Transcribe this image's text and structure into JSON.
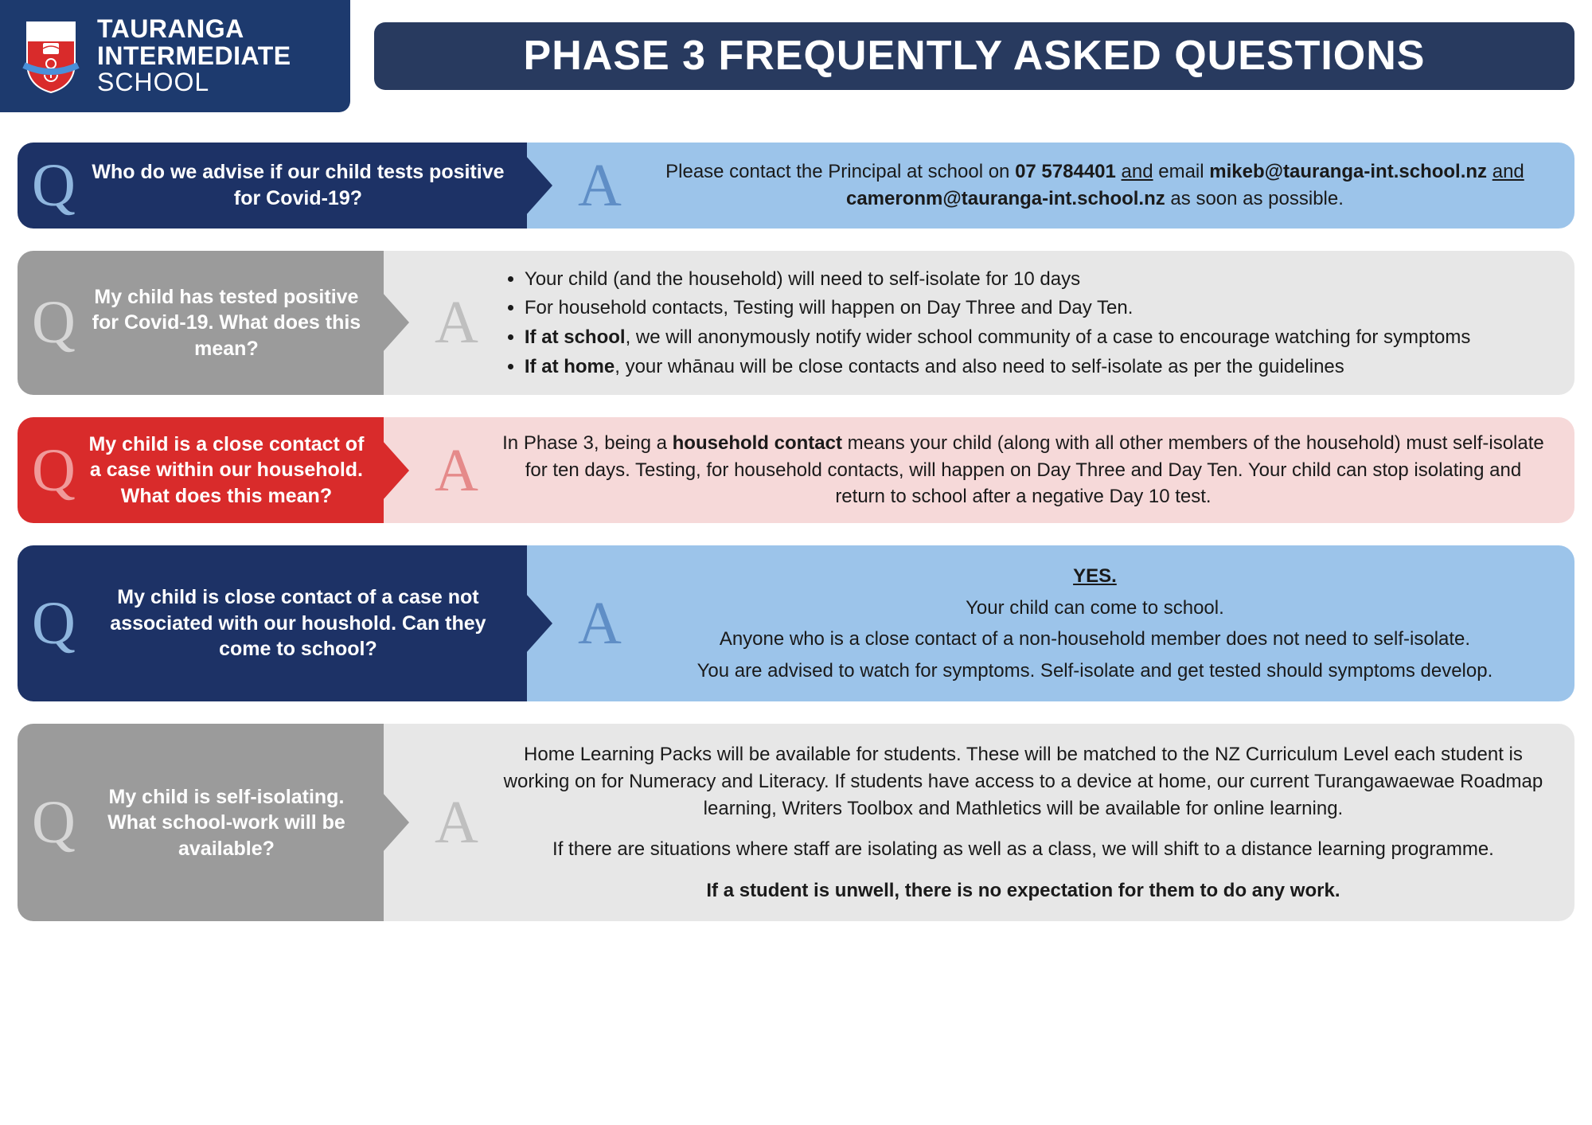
{
  "school": {
    "line1": "TAURANGA",
    "line2": "INTERMEDIATE",
    "line3": "SCHOOL"
  },
  "title": "PHASE 3 FREQUENTLY ASKED QUESTIONS",
  "colors": {
    "header_logo_bg": "#1d3a6e",
    "title_bar_bg": "#283a5f",
    "q_navy": "#1d3266",
    "q_navy_letter": "#8fb6de",
    "a_lightblue": "#9cc4ea",
    "a_lightblue_letter": "#5f8ec6",
    "q_grey": "#9b9b9b",
    "q_grey_letter": "#d7d7d7",
    "a_lightgrey": "#e7e7e7",
    "a_lightgrey_letter": "#bfbfbf",
    "q_red": "#d92b2b",
    "q_red_letter": "#f09a9a",
    "a_pink": "#f6d9d9",
    "a_pink_letter": "#e58a8a",
    "text": "#1a1a1a"
  },
  "faq": [
    {
      "style": "navy",
      "width": "wide",
      "question": "Who do we advise if our child tests positive for Covid-19?",
      "answer_html": "Please contact the Principal at school on <span class='bold'>07 5784401</span> <span class='ul'>and</span> email <span class='bold'>mikeb@tauranga-int.school.nz</span> <span class='ul'>and</span> <span class='bold'>cameronm@tauranga-int.school.nz</span> as soon as possible.",
      "align": "center"
    },
    {
      "style": "grey",
      "width": "narrow",
      "question": "My child has tested positive for Covid-19. What does this mean?",
      "answer_html": "<ul><li>Your child (and the household) will need to self-isolate for 10 days</li><li>For household contacts, Testing will happen on Day Three and Day Ten.</li><li><span class='bold'>If at school</span>, we will anonymously notify wider school community of a case to encourage watching for symptoms</li><li><span class='bold'>If at home</span>, your whānau will be close contacts and also need to self-isolate as per the guidelines</li></ul>",
      "align": "left"
    },
    {
      "style": "red",
      "width": "mid",
      "question": "My child is a close contact of a case within our household. What does this mean?",
      "answer_html": "In Phase 3, being a <span class='bold'>household contact</span> means your child (along with all other members of the household) must self-isolate for ten days. Testing, for household contacts, will happen on Day Three and Day Ten. Your child can stop isolating and return to school after a negative Day 10 test.",
      "align": "center"
    },
    {
      "style": "navy",
      "width": "wide",
      "question": "My child is close contact of a case not associated with our houshold. Can they come to school?",
      "answer_html": "<p><span class='bold ul'>YES.</span></p><p>Your child can come to school.</p><p>Anyone who is a close contact of a non-household member does not need to self-isolate.</p><p>You are advised to watch for symptoms. Self-isolate and get tested should symptoms develop.</p>",
      "align": "center"
    },
    {
      "style": "grey",
      "width": "narrow",
      "question": "My child is self-isolating. What school-work will be available?",
      "answer_html": "<p>Home Learning Packs will be available for students. These will be matched to the NZ Curriculum Level each student is working on for Numeracy and Literacy. If students have access to a device at home, our current Turangawaewae Roadmap learning, Writers Toolbox and Mathletics will be available for online learning.</p><p style='margin-top:18px'>If there are situations where staff are isolating as well as a class, we will shift to a distance learning programme.</p><p style='margin-top:18px' class='bold'>If a student is unwell, there is no expectation for them to do any work.</p>",
      "align": "center"
    }
  ]
}
